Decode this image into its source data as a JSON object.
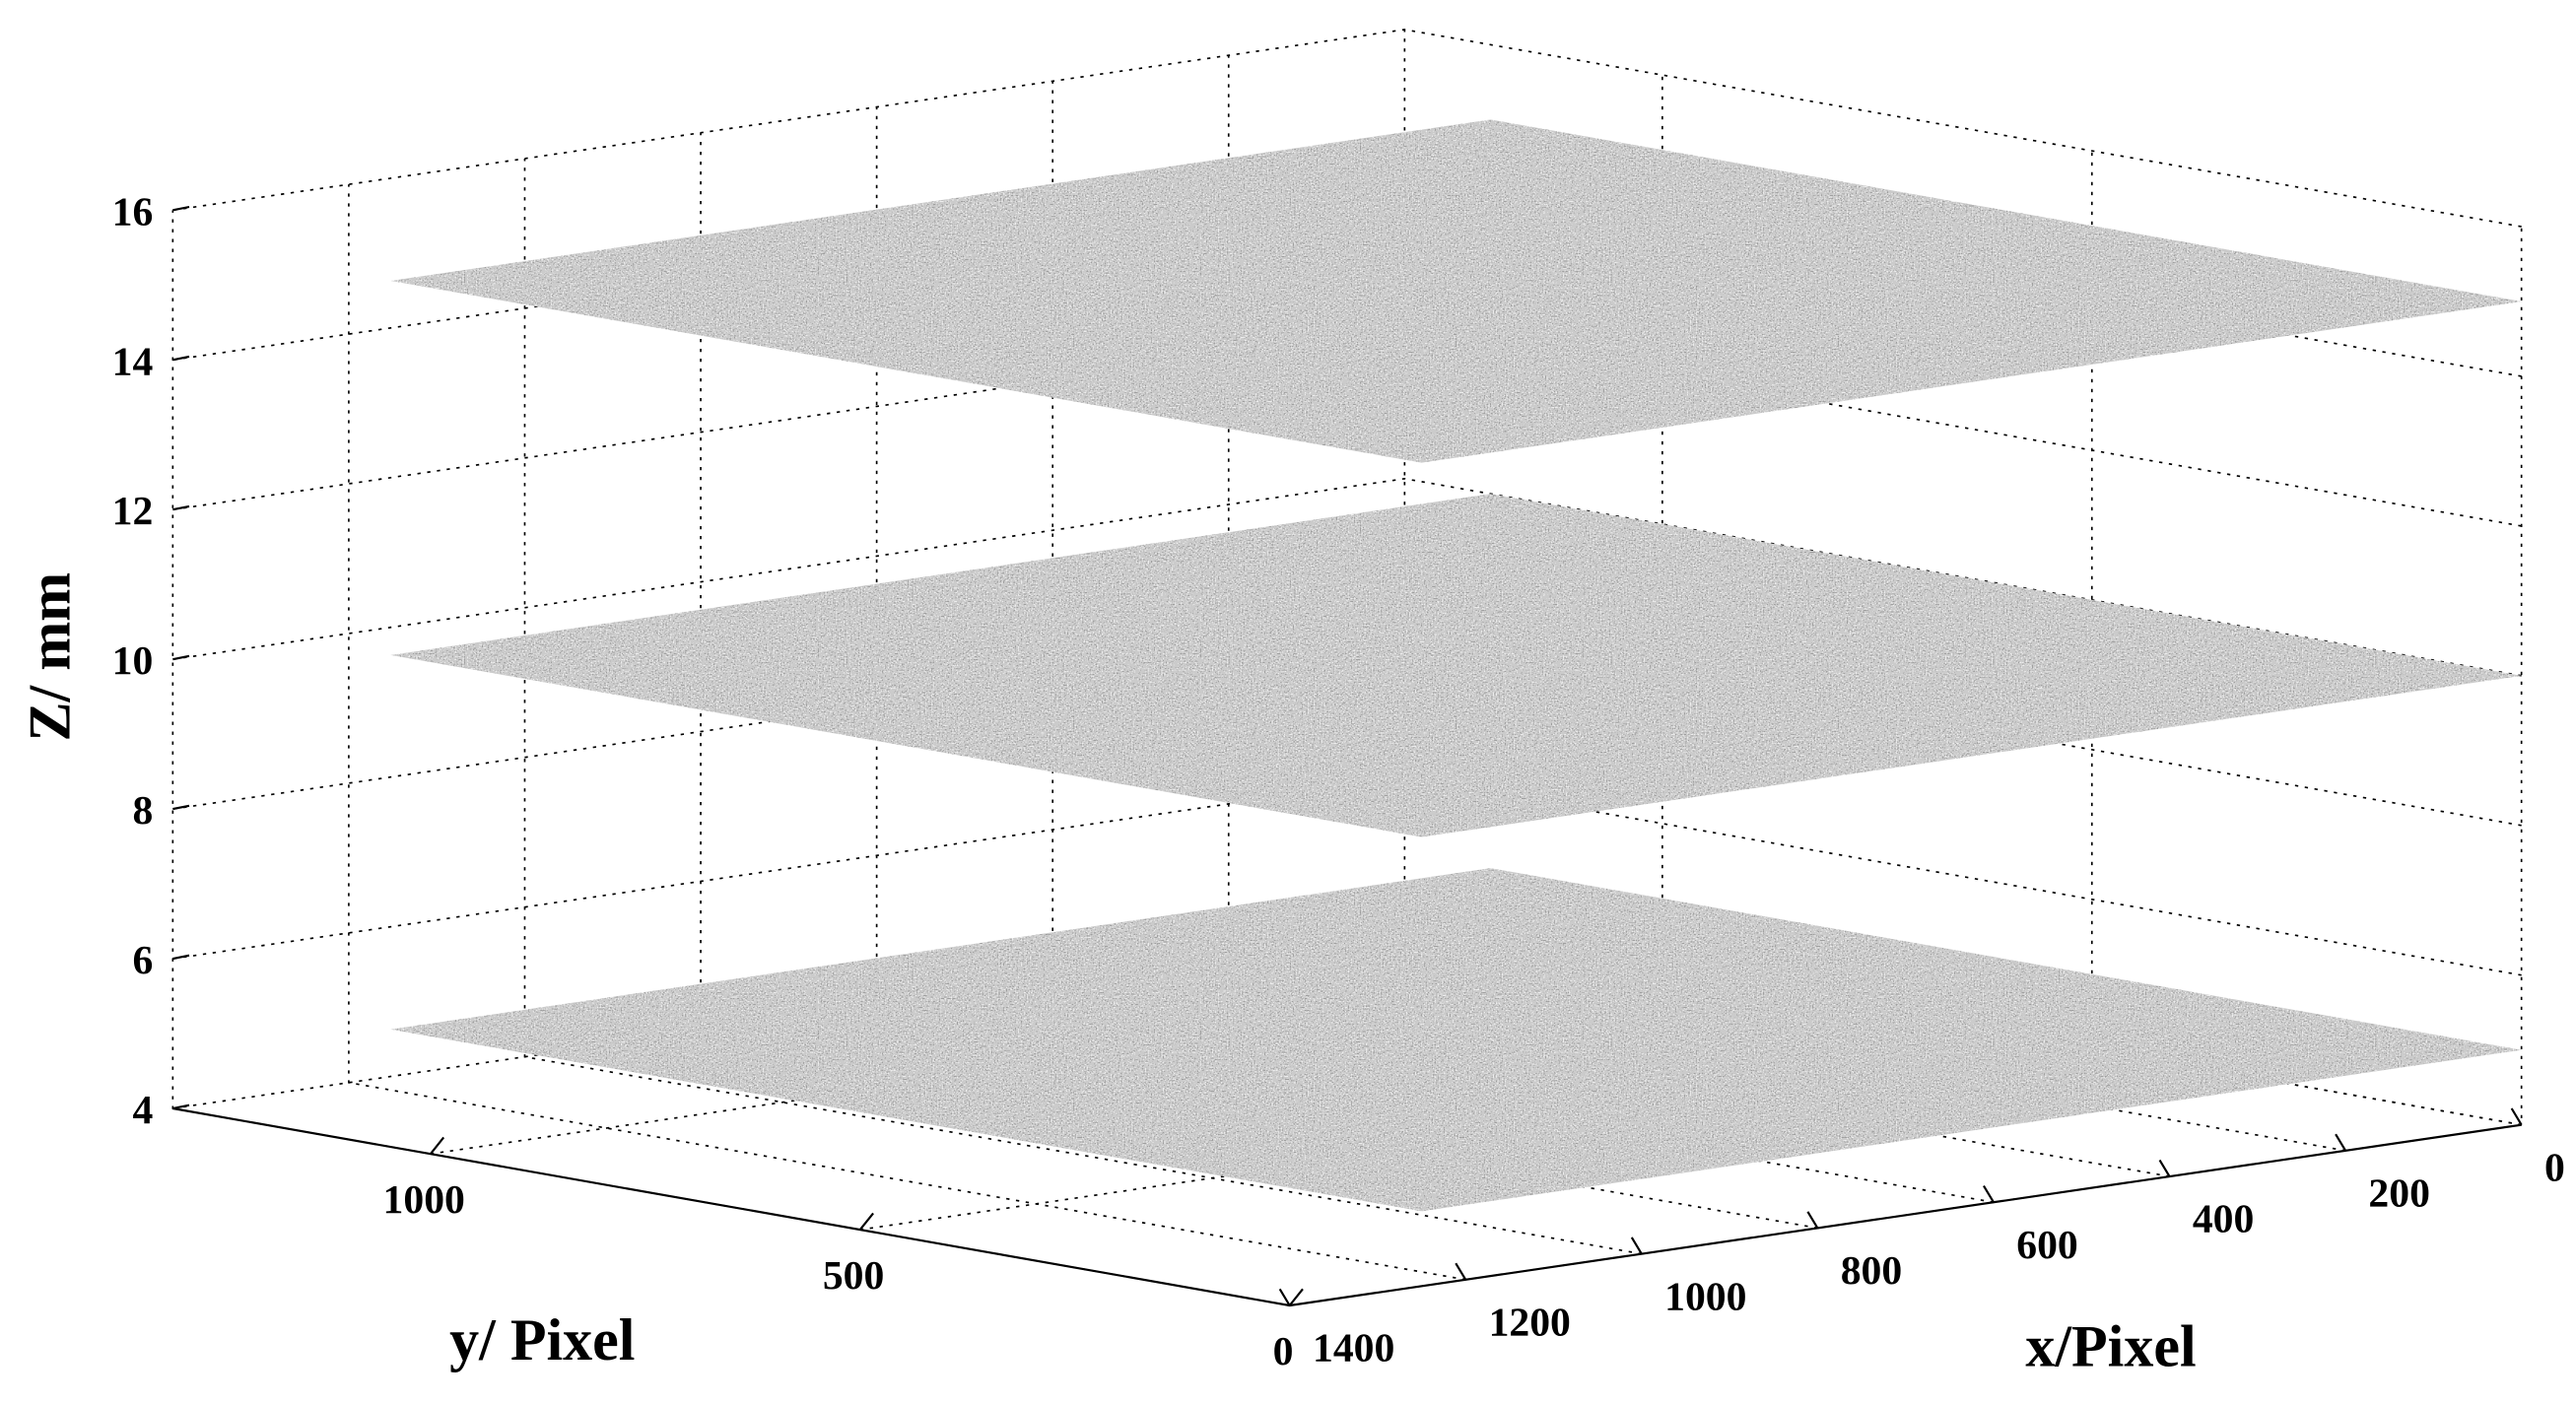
{
  "chart_data": {
    "type": "plane3d",
    "xlabel": "x/Pixel",
    "ylabel": "y/ Pixel",
    "zlabel": "Z/ mm",
    "xlim": [
      0,
      1400
    ],
    "ylim": [
      0,
      1300
    ],
    "zlim": [
      4,
      16
    ],
    "xticks": [
      0,
      200,
      400,
      600,
      800,
      1000,
      1200,
      1400
    ],
    "yticks": [
      0,
      500,
      1000
    ],
    "zticks": [
      4,
      6,
      8,
      10,
      12,
      14,
      16
    ],
    "grid": true,
    "color": "#8c8c8c",
    "series": [
      {
        "x": [
          0,
          1250
        ],
        "y": [
          0,
          1200
        ],
        "z": 5
      },
      {
        "x": [
          0,
          1250
        ],
        "y": [
          0,
          1200
        ],
        "z": 10
      },
      {
        "x": [
          0,
          1250
        ],
        "y": [
          0,
          1200
        ],
        "z": 15
      }
    ]
  }
}
